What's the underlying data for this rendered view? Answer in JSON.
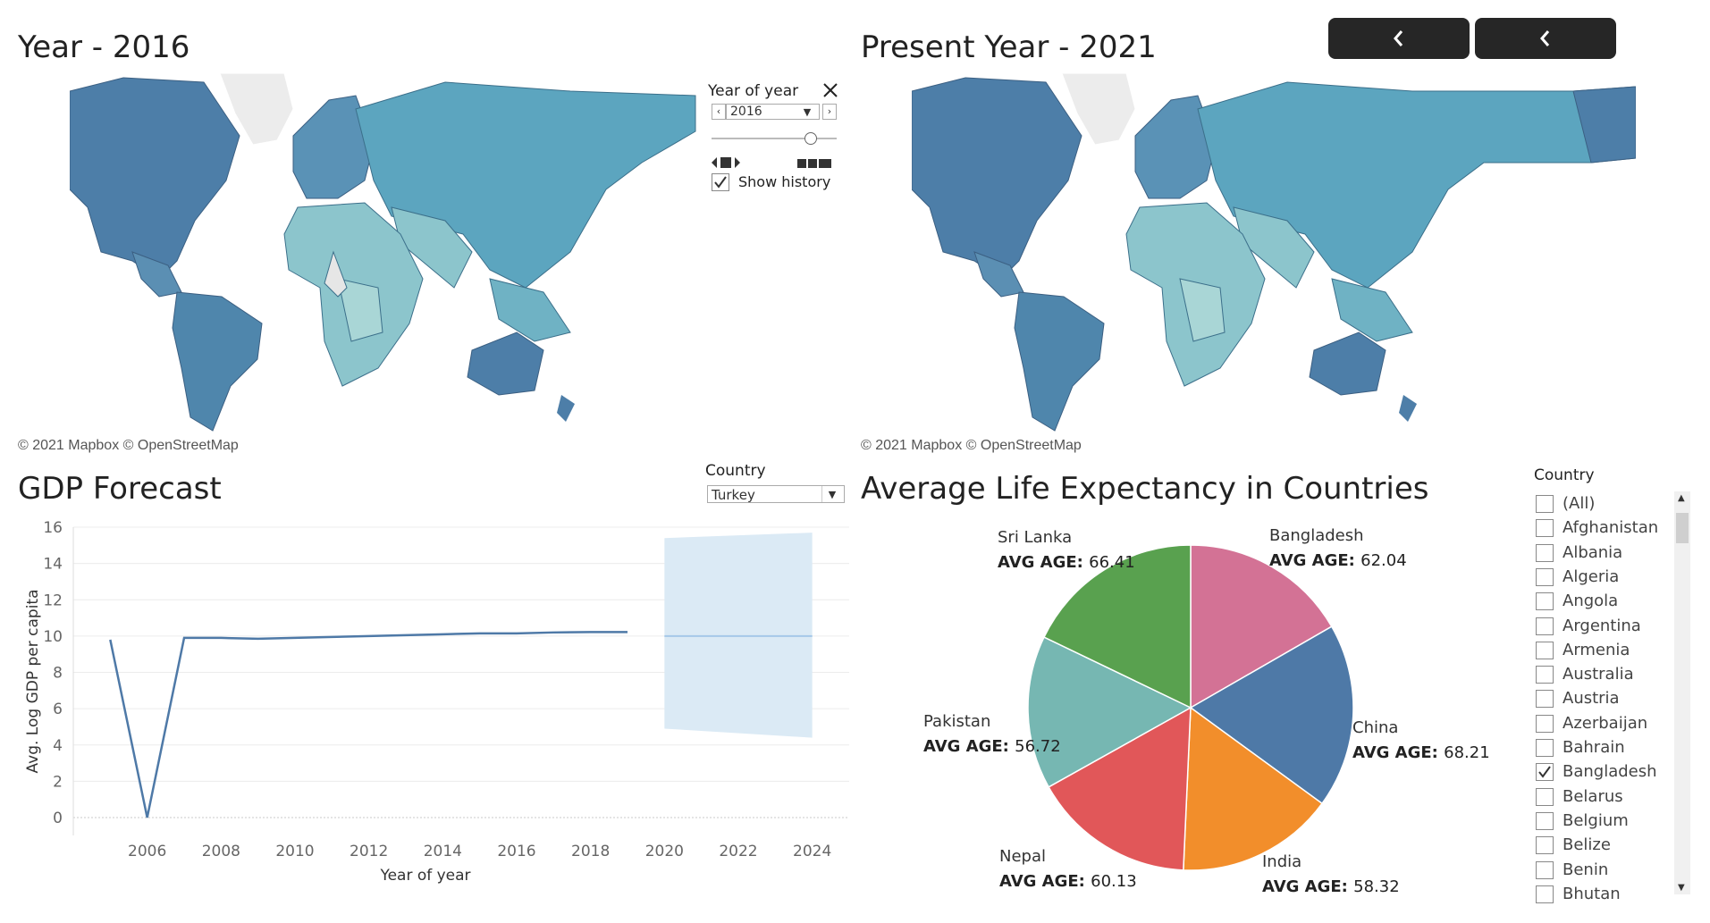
{
  "maps": {
    "left_title": "Year - 2016",
    "right_title": "Present Year - 2021",
    "attribution": "© 2021 Mapbox © OpenStreetMap"
  },
  "nav": {
    "back_icon": "chevron-left-icon",
    "forward_icon": "chevron-left-icon"
  },
  "year_control": {
    "title": "Year of year",
    "value": "2016",
    "show_history_label": "Show history",
    "show_history_checked": true
  },
  "gdp": {
    "title": "GDP Forecast",
    "country_filter_label": "Country",
    "country_value": "Turkey"
  },
  "chart_data": [
    {
      "type": "line",
      "title": "GDP Forecast",
      "xlabel": "Year of year",
      "ylabel": "Avg. Log GDP per capita",
      "xlim": [
        2004,
        2025
      ],
      "ylim": [
        0,
        16
      ],
      "x_ticks": [
        "2006",
        "2008",
        "2010",
        "2012",
        "2014",
        "2016",
        "2018",
        "2020",
        "2022",
        "2024"
      ],
      "y_ticks": [
        "0",
        "2",
        "4",
        "6",
        "8",
        "10",
        "12",
        "14",
        "16"
      ],
      "series": [
        {
          "x": [
            2005,
            2006,
            2007,
            2008,
            2009,
            2010,
            2011,
            2012,
            2013,
            2014,
            2015,
            2016,
            2017,
            2018,
            2019
          ],
          "y": [
            9.8,
            0,
            9.9,
            9.9,
            9.85,
            9.9,
            9.95,
            10.0,
            10.05,
            10.1,
            10.15,
            10.15,
            10.2,
            10.22,
            10.22
          ]
        }
      ],
      "forecast": {
        "x": [
          2020,
          2024
        ],
        "estimate": [
          10.0,
          10.0
        ],
        "lower": [
          4.9,
          4.4
        ],
        "upper": [
          15.4,
          15.7
        ]
      },
      "colors": {
        "line": "#4e79a7",
        "forecast_line": "#a5c8e8",
        "band": "#dbeaf5"
      }
    },
    {
      "type": "pie",
      "title": "Average Life Expectancy in Countries",
      "slices": [
        {
          "label": "Bangladesh",
          "value": 62.04,
          "color": "#d37295"
        },
        {
          "label": "China",
          "value": 68.21,
          "color": "#4e79a7"
        },
        {
          "label": "India",
          "value": 58.32,
          "color": "#f28e2b"
        },
        {
          "label": "Nepal",
          "value": 60.13,
          "color": "#e15759"
        },
        {
          "label": "Pakistan",
          "value": 56.72,
          "color": "#76b7b2"
        },
        {
          "label": "Sri Lanka",
          "value": 66.41,
          "color": "#59a14f"
        }
      ],
      "value_prefix": "AVG AGE:"
    }
  ],
  "life": {
    "title": "Average Life Expectancy in Countries",
    "country_filter_label": "Country",
    "countries": [
      {
        "name": "(All)",
        "checked": false
      },
      {
        "name": "Afghanistan",
        "checked": false
      },
      {
        "name": "Albania",
        "checked": false
      },
      {
        "name": "Algeria",
        "checked": false
      },
      {
        "name": "Angola",
        "checked": false
      },
      {
        "name": "Argentina",
        "checked": false
      },
      {
        "name": "Armenia",
        "checked": false
      },
      {
        "name": "Australia",
        "checked": false
      },
      {
        "name": "Austria",
        "checked": false
      },
      {
        "name": "Azerbaijan",
        "checked": false
      },
      {
        "name": "Bahrain",
        "checked": false
      },
      {
        "name": "Bangladesh",
        "checked": true
      },
      {
        "name": "Belarus",
        "checked": false
      },
      {
        "name": "Belgium",
        "checked": false
      },
      {
        "name": "Belize",
        "checked": false
      },
      {
        "name": "Benin",
        "checked": false
      },
      {
        "name": "Bhutan",
        "checked": false
      }
    ]
  }
}
